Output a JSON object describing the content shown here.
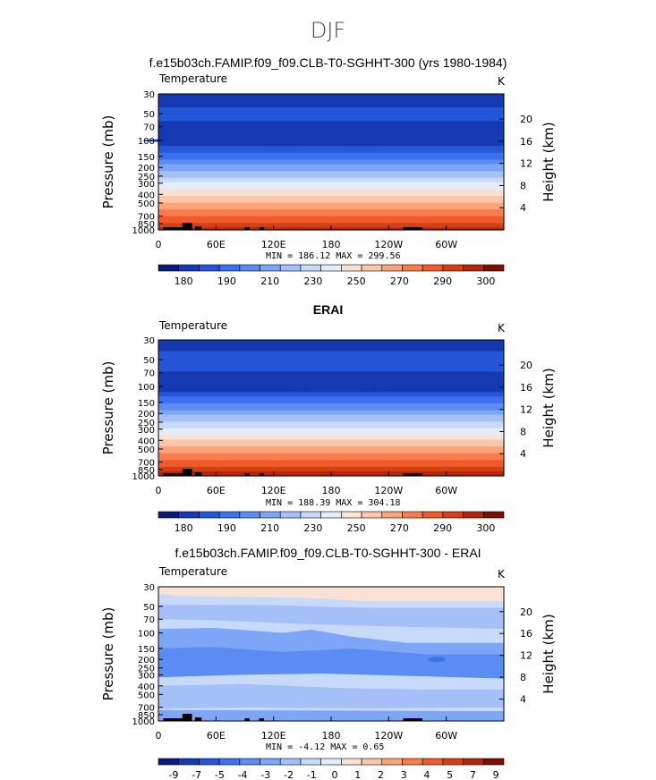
{
  "figure_title": "DJF",
  "chart_data": [
    {
      "type": "heatmap",
      "title": "f.e15b03ch.FAMIP.f09_f09.CLB-T0-SGHHT-300 (yrs 1980-1984)",
      "variable": "Temperature",
      "units": "K",
      "ylabel": "Pressure  (mb)",
      "ylabel_right": "Height  (km)",
      "x_ticks": [
        "0",
        "60E",
        "120E",
        "180",
        "120W",
        "60W"
      ],
      "y_ticks": [
        "30",
        "50",
        "70",
        "100",
        "150",
        "200",
        "250",
        "300",
        "400",
        "500",
        "700",
        "850",
        "1000"
      ],
      "height_ticks": [
        "20",
        "16",
        "12",
        "8",
        "4"
      ],
      "stats": "MIN = 186.12  MAX = 299.56",
      "colorbar_levels": [
        "180",
        "190",
        "210",
        "230",
        "250",
        "270",
        "290",
        "300"
      ],
      "colorbar_colors": [
        "#081d7a",
        "#1539b0",
        "#2556d9",
        "#3d71ee",
        "#5a8cf3",
        "#7ea6f6",
        "#a5c0f8",
        "#c8daf9",
        "#e4eefa",
        "#f9e2d4",
        "#fcc6a8",
        "#fba37b",
        "#f77d4e",
        "#ee5a2a",
        "#d63e15",
        "#b0260c",
        "#7a0f03"
      ],
      "profile_bands": [
        {
          "p": 30,
          "level": 180
        },
        {
          "p": 50,
          "level": 190
        },
        {
          "p": 100,
          "level": 180
        },
        {
          "p": 150,
          "level": 200
        },
        {
          "p": 200,
          "level": 215
        },
        {
          "p": 300,
          "level": 235
        },
        {
          "p": 400,
          "level": 250
        },
        {
          "p": 500,
          "level": 260
        },
        {
          "p": 700,
          "level": 275
        },
        {
          "p": 850,
          "level": 285
        },
        {
          "p": 1000,
          "level": 295
        }
      ]
    },
    {
      "type": "heatmap",
      "title": "ERAI",
      "variable": "Temperature",
      "units": "K",
      "ylabel": "Pressure  (mb)",
      "ylabel_right": "Height  (km)",
      "x_ticks": [
        "0",
        "60E",
        "120E",
        "180",
        "120W",
        "60W"
      ],
      "y_ticks": [
        "30",
        "50",
        "70",
        "100",
        "150",
        "200",
        "250",
        "300",
        "400",
        "500",
        "700",
        "850",
        "1000"
      ],
      "height_ticks": [
        "20",
        "16",
        "12",
        "8",
        "4"
      ],
      "stats": "MIN = 188.39  MAX = 304.18",
      "colorbar_levels": [
        "180",
        "190",
        "210",
        "230",
        "250",
        "270",
        "290",
        "300"
      ],
      "colorbar_colors": [
        "#081d7a",
        "#1539b0",
        "#2556d9",
        "#3d71ee",
        "#5a8cf3",
        "#7ea6f6",
        "#a5c0f8",
        "#c8daf9",
        "#e4eefa",
        "#f9e2d4",
        "#fcc6a8",
        "#fba37b",
        "#f77d4e",
        "#ee5a2a",
        "#d63e15",
        "#b0260c",
        "#7a0f03"
      ]
    },
    {
      "type": "heatmap",
      "title": "f.e15b03ch.FAMIP.f09_f09.CLB-T0-SGHHT-300 - ERAI",
      "variable": "Temperature",
      "units": "K",
      "ylabel": "Pressure  (mb)",
      "ylabel_right": "Height  (km)",
      "x_ticks": [
        "0",
        "60E",
        "120E",
        "180",
        "120W",
        "60W"
      ],
      "y_ticks": [
        "30",
        "50",
        "70",
        "100",
        "150",
        "200",
        "250",
        "300",
        "400",
        "500",
        "700",
        "850",
        "1000"
      ],
      "height_ticks": [
        "20",
        "16",
        "12",
        "8",
        "4"
      ],
      "stats": "MIN =  -4.12  MAX =    0.65",
      "colorbar_levels": [
        "-9",
        "-7",
        "-5",
        "-4",
        "-3",
        "-2",
        "-1",
        "0",
        "1",
        "2",
        "3",
        "4",
        "5",
        "7",
        "9"
      ],
      "colorbar_colors": [
        "#081d7a",
        "#1539b0",
        "#2556d9",
        "#3d71ee",
        "#5a8cf3",
        "#7ea6f6",
        "#a5c0f8",
        "#c8daf9",
        "#e4eefa",
        "#f9e2d4",
        "#fcc6a8",
        "#fba37b",
        "#f77d4e",
        "#ee5a2a",
        "#d63e15",
        "#b0260c",
        "#7a0f03"
      ]
    }
  ]
}
